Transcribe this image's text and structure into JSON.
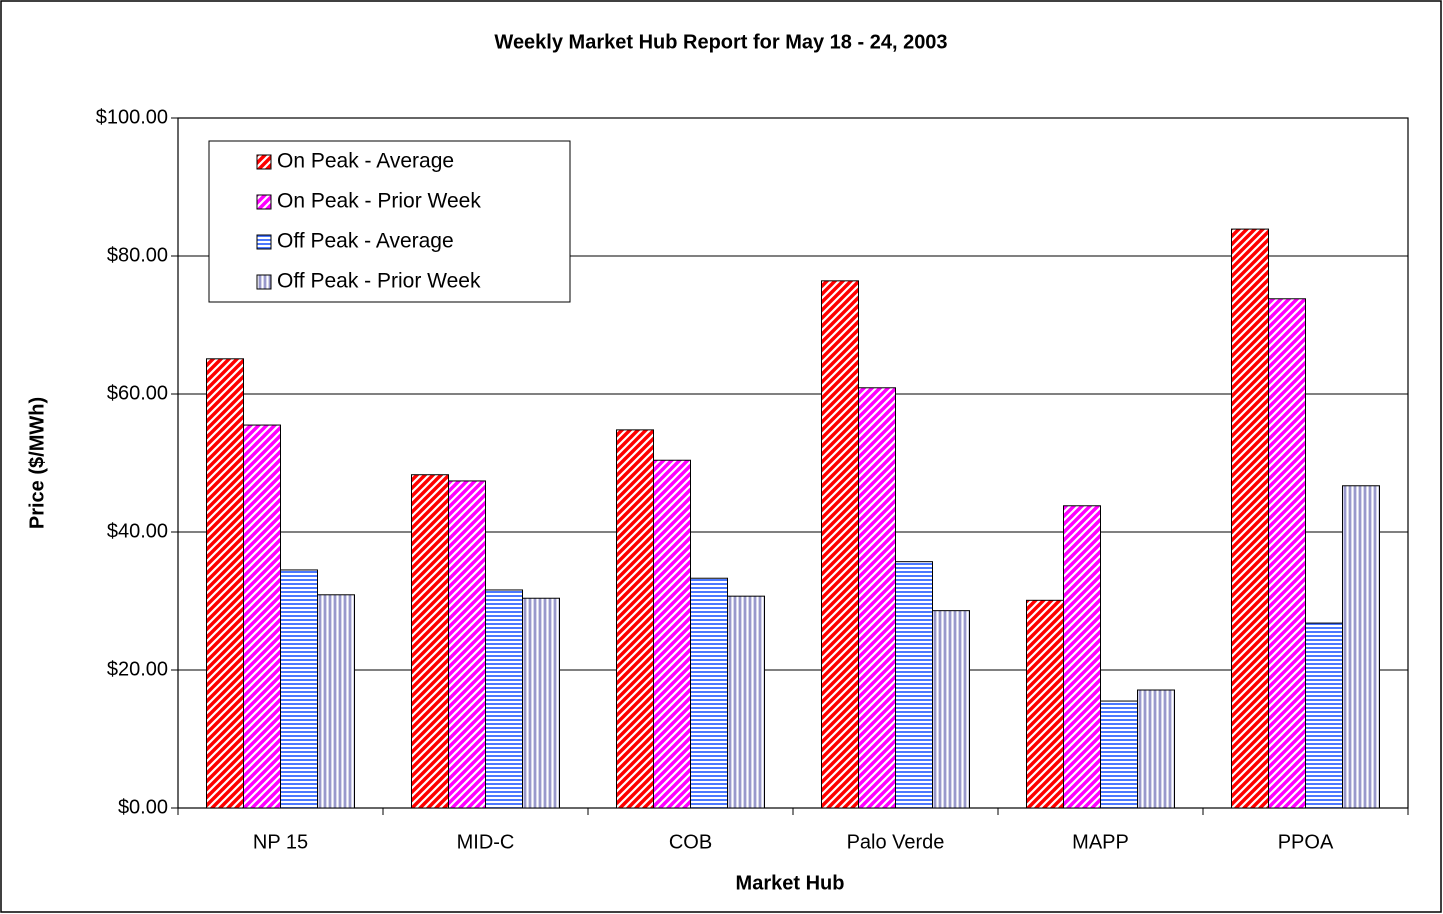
{
  "chart_data": {
    "type": "bar",
    "title": "Weekly Market Hub Report for May 18 - 24,  2003",
    "x_label": "Market Hub",
    "y_label": "Price ($/MWh)",
    "categories": [
      "NP 15",
      "MID-C",
      "COB",
      "Palo Verde",
      "MAPP",
      "PPOA"
    ],
    "series": [
      {
        "name": "On Peak - Average",
        "color": "#ff0000",
        "pattern": "diagonal",
        "values": [
          65.1,
          48.3,
          54.8,
          76.4,
          30.1,
          83.9
        ]
      },
      {
        "name": "On Peak - Prior Week",
        "color": "#ff00ff",
        "pattern": "diagonal",
        "values": [
          55.5,
          47.4,
          50.4,
          60.9,
          43.8,
          73.8
        ]
      },
      {
        "name": "Off Peak - Average",
        "color": "#3366ff",
        "pattern": "horizontal",
        "values": [
          34.5,
          31.6,
          33.3,
          35.7,
          15.5,
          26.8
        ]
      },
      {
        "name": "Off Peak - Prior Week",
        "color": "#9999cc",
        "pattern": "vertical",
        "values": [
          30.9,
          30.4,
          30.7,
          28.6,
          17.1,
          46.7
        ]
      }
    ],
    "ylim": [
      0,
      100
    ],
    "yticks": [
      {
        "value": 0,
        "label": "$0.00"
      },
      {
        "value": 20,
        "label": "$20.00"
      },
      {
        "value": 40,
        "label": "$40.00"
      },
      {
        "value": 60,
        "label": "$60.00"
      },
      {
        "value": 80,
        "label": "$80.00"
      },
      {
        "value": 100,
        "label": "$100.00"
      }
    ],
    "grid": true,
    "legend": "upper left"
  }
}
